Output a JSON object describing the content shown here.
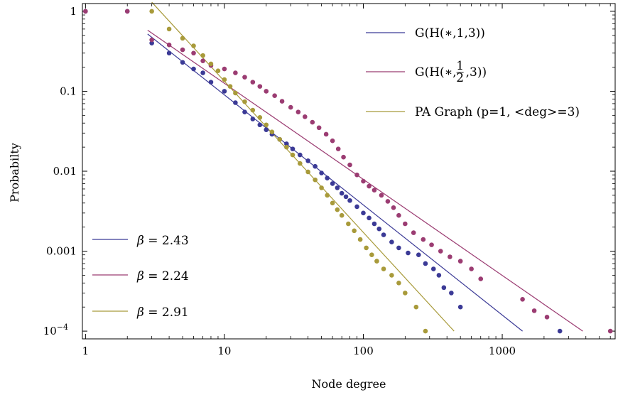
{
  "chart_data": {
    "type": "scatter",
    "xlabel": "Node degree",
    "ylabel": "Probabilty",
    "xscale": "log",
    "yscale": "log",
    "xlim": [
      0.95,
      6500
    ],
    "ylim": [
      8e-05,
      1.25
    ],
    "xticks": [
      {
        "value": 1,
        "label": "1"
      },
      {
        "value": 10,
        "label": "10"
      },
      {
        "value": 100,
        "label": "100"
      },
      {
        "value": 1000,
        "label": "1000"
      }
    ],
    "yticks": [
      {
        "value": 1,
        "label": "1"
      },
      {
        "value": 0.1,
        "label": "0.1"
      },
      {
        "value": 0.01,
        "label": "0.01"
      },
      {
        "value": 0.001,
        "label": "0.001"
      },
      {
        "value": 0.0001,
        "label": "10",
        "sup": "−4"
      }
    ],
    "grid": false,
    "series": [
      {
        "name": "G(H(∗,1,3))",
        "color": "#3b3a96",
        "points": [
          [
            1,
            1
          ],
          [
            2,
            1
          ],
          [
            3,
            0.4
          ],
          [
            4,
            0.3
          ],
          [
            5,
            0.23
          ],
          [
            6,
            0.19
          ],
          [
            7,
            0.17
          ],
          [
            8,
            0.13
          ],
          [
            10,
            0.1
          ],
          [
            12,
            0.072
          ],
          [
            14,
            0.055
          ],
          [
            16,
            0.045
          ],
          [
            18,
            0.038
          ],
          [
            20,
            0.033
          ],
          [
            22,
            0.029
          ],
          [
            25,
            0.025
          ],
          [
            28,
            0.022
          ],
          [
            31,
            0.019
          ],
          [
            35,
            0.016
          ],
          [
            40,
            0.0135
          ],
          [
            45,
            0.0115
          ],
          [
            50,
            0.0095
          ],
          [
            55,
            0.0082
          ],
          [
            60,
            0.007
          ],
          [
            65,
            0.0062
          ],
          [
            70,
            0.0053
          ],
          [
            75,
            0.0048
          ],
          [
            80,
            0.0043
          ],
          [
            90,
            0.0036
          ],
          [
            100,
            0.003
          ],
          [
            110,
            0.0026
          ],
          [
            120,
            0.0022
          ],
          [
            130,
            0.0019
          ],
          [
            140,
            0.0016
          ],
          [
            160,
            0.0013
          ],
          [
            180,
            0.0011
          ],
          [
            210,
            0.00095
          ],
          [
            250,
            0.0009
          ],
          [
            280,
            0.0007
          ],
          [
            320,
            0.0006
          ],
          [
            350,
            0.0005
          ],
          [
            380,
            0.00035
          ],
          [
            430,
            0.0003
          ],
          [
            500,
            0.0002
          ],
          [
            2600,
            0.0001
          ]
        ],
        "fit": {
          "x": [
            2.8,
            1400
          ],
          "y": [
            0.52,
            0.0001
          ]
        }
      },
      {
        "name": "G(H(∗,½,3))",
        "color": "#9b3c72",
        "points": [
          [
            1,
            1
          ],
          [
            2,
            1
          ],
          [
            3,
            0.44
          ],
          [
            4,
            0.38
          ],
          [
            5,
            0.33
          ],
          [
            6,
            0.3
          ],
          [
            7,
            0.24
          ],
          [
            8,
            0.21
          ],
          [
            10,
            0.19
          ],
          [
            12,
            0.17
          ],
          [
            14,
            0.15
          ],
          [
            16,
            0.13
          ],
          [
            18,
            0.115
          ],
          [
            20,
            0.1
          ],
          [
            23,
            0.088
          ],
          [
            26,
            0.075
          ],
          [
            30,
            0.063
          ],
          [
            34,
            0.055
          ],
          [
            38,
            0.048
          ],
          [
            43,
            0.041
          ],
          [
            48,
            0.035
          ],
          [
            54,
            0.029
          ],
          [
            60,
            0.024
          ],
          [
            66,
            0.019
          ],
          [
            72,
            0.015
          ],
          [
            80,
            0.012
          ],
          [
            90,
            0.009
          ],
          [
            100,
            0.0075
          ],
          [
            110,
            0.0065
          ],
          [
            120,
            0.0058
          ],
          [
            135,
            0.005
          ],
          [
            150,
            0.0042
          ],
          [
            165,
            0.0035
          ],
          [
            180,
            0.0028
          ],
          [
            200,
            0.0022
          ],
          [
            230,
            0.0017
          ],
          [
            270,
            0.0014
          ],
          [
            310,
            0.0012
          ],
          [
            360,
            0.001
          ],
          [
            420,
            0.00085
          ],
          [
            500,
            0.00075
          ],
          [
            600,
            0.0006
          ],
          [
            700,
            0.00045
          ],
          [
            1400,
            0.00025
          ],
          [
            1700,
            0.00018
          ],
          [
            2100,
            0.00015
          ],
          [
            6000,
            0.0001
          ]
        ],
        "fit": {
          "x": [
            2.8,
            3800
          ],
          "y": [
            0.58,
            0.0001
          ]
        }
      },
      {
        "name": "PA Graph (p=1, <deg>=3)",
        "color": "#a89a3a",
        "points": [
          [
            3,
            1
          ],
          [
            4,
            0.6
          ],
          [
            5,
            0.46
          ],
          [
            6,
            0.37
          ],
          [
            7,
            0.28
          ],
          [
            8,
            0.22
          ],
          [
            9,
            0.18
          ],
          [
            10,
            0.14
          ],
          [
            11,
            0.115
          ],
          [
            12,
            0.095
          ],
          [
            14,
            0.074
          ],
          [
            16,
            0.058
          ],
          [
            18,
            0.047
          ],
          [
            20,
            0.038
          ],
          [
            22,
            0.031
          ],
          [
            25,
            0.025
          ],
          [
            28,
            0.02
          ],
          [
            31,
            0.016
          ],
          [
            35,
            0.0125
          ],
          [
            40,
            0.0098
          ],
          [
            45,
            0.0078
          ],
          [
            50,
            0.0062
          ],
          [
            55,
            0.005
          ],
          [
            60,
            0.004
          ],
          [
            65,
            0.0033
          ],
          [
            70,
            0.0028
          ],
          [
            78,
            0.0022
          ],
          [
            86,
            0.0018
          ],
          [
            95,
            0.0014
          ],
          [
            105,
            0.0011
          ],
          [
            115,
            0.0009
          ],
          [
            125,
            0.00075
          ],
          [
            140,
            0.0006
          ],
          [
            160,
            0.0005
          ],
          [
            180,
            0.0004
          ],
          [
            200,
            0.0003
          ],
          [
            240,
            0.0002
          ],
          [
            280,
            0.0001
          ]
        ],
        "fit": {
          "x": [
            3,
            450
          ],
          "y": [
            1.3,
            0.0001
          ]
        }
      }
    ],
    "legend": {
      "placement": "top-right",
      "entries": [
        {
          "label": "G(H(∗,1,3))"
        },
        {
          "label_prefix": "G(H(∗,",
          "frac_num": "1",
          "frac_den": "2",
          "label_suffix": ",3))"
        },
        {
          "label": "PA Graph (p=1, <deg>=3)"
        }
      ]
    },
    "fit_legend": {
      "placement": "bottom-left",
      "entries": [
        {
          "symbol": "β",
          "text": " = 2.43"
        },
        {
          "symbol": "β",
          "text": " = 2.24"
        },
        {
          "symbol": "β",
          "text": " = 2.91"
        }
      ]
    }
  }
}
